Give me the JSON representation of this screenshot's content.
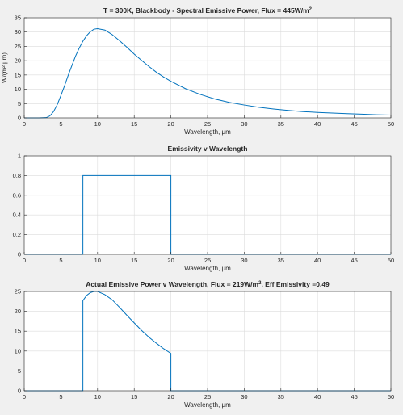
{
  "figure": {
    "background": "#f0f0f0",
    "axes_background": "#ffffff",
    "line_color": "#0072bd",
    "grid_color": "#dcdcdc"
  },
  "chart_data": [
    {
      "type": "line",
      "title_main": "T = 300K, Blackbody - Spectral Emissive Power, Flux = 445W/m",
      "title_sup": "2",
      "xlabel": "Wavelength, μm",
      "ylabel": "W/(m² μm)",
      "xlim": [
        0,
        50
      ],
      "ylim": [
        0,
        35
      ],
      "xticks": [
        0,
        5,
        10,
        15,
        20,
        25,
        30,
        35,
        40,
        45,
        50
      ],
      "yticks": [
        0,
        5,
        10,
        15,
        20,
        25,
        30,
        35
      ],
      "grid": true,
      "series": [
        {
          "x": [
            0,
            2,
            3,
            3.5,
            4,
            4.5,
            5,
            5.5,
            6,
            6.5,
            7,
            7.5,
            8,
            8.5,
            9,
            9.5,
            10,
            11,
            12,
            13,
            14,
            15,
            16,
            17,
            18,
            19,
            20,
            22,
            24,
            26,
            28,
            30,
            32,
            34,
            36,
            38,
            40,
            42,
            44,
            46,
            48,
            50
          ],
          "y": [
            0,
            0,
            0.1,
            0.7,
            2.2,
            4.6,
            7.8,
            11.2,
            14.9,
            18.3,
            21.6,
            24.4,
            26.8,
            28.7,
            30.1,
            31.0,
            31.2,
            30.7,
            29.1,
            27.0,
            24.7,
            22.3,
            20.1,
            18.0,
            16.0,
            14.3,
            12.8,
            10.2,
            8.2,
            6.6,
            5.4,
            4.5,
            3.7,
            3.1,
            2.6,
            2.2,
            1.9,
            1.7,
            1.5,
            1.3,
            1.1,
            1.0
          ]
        }
      ]
    },
    {
      "type": "line",
      "title_main": "Emissivity v Wavelength",
      "title_sup": "",
      "xlabel": "Wavelength, μm",
      "ylabel": "",
      "xlim": [
        0,
        50
      ],
      "ylim": [
        0,
        1
      ],
      "xticks": [
        0,
        5,
        10,
        15,
        20,
        25,
        30,
        35,
        40,
        45,
        50
      ],
      "yticks": [
        0,
        0.2,
        0.4,
        0.6,
        0.8,
        1
      ],
      "grid": true,
      "series": [
        {
          "x": [
            0,
            8,
            8,
            20,
            20,
            50
          ],
          "y": [
            0,
            0,
            0.8,
            0.8,
            0,
            0
          ]
        }
      ]
    },
    {
      "type": "line",
      "title_main": "Actual Emissive Power v Wavelength, Flux = 219W/m",
      "title_sup": "2",
      "title_tail": ", Eff Emissivity =0.49",
      "xlabel": "Wavelength, μm",
      "ylabel": "",
      "xlim": [
        0,
        50
      ],
      "ylim": [
        0,
        25
      ],
      "xticks": [
        0,
        5,
        10,
        15,
        20,
        25,
        30,
        35,
        40,
        45,
        50
      ],
      "yticks": [
        0,
        5,
        10,
        15,
        20,
        25
      ],
      "grid": true,
      "series": [
        {
          "x": [
            0,
            8,
            8,
            8.5,
            9,
            9.5,
            10,
            11,
            12,
            13,
            14,
            15,
            16,
            17,
            18,
            19,
            20,
            20,
            50
          ],
          "y": [
            0,
            0,
            22.7,
            24.0,
            24.7,
            25.0,
            25.0,
            24.2,
            22.9,
            21.0,
            19.0,
            17.1,
            15.2,
            13.5,
            12.0,
            10.6,
            9.4,
            0,
            0
          ]
        }
      ]
    }
  ]
}
